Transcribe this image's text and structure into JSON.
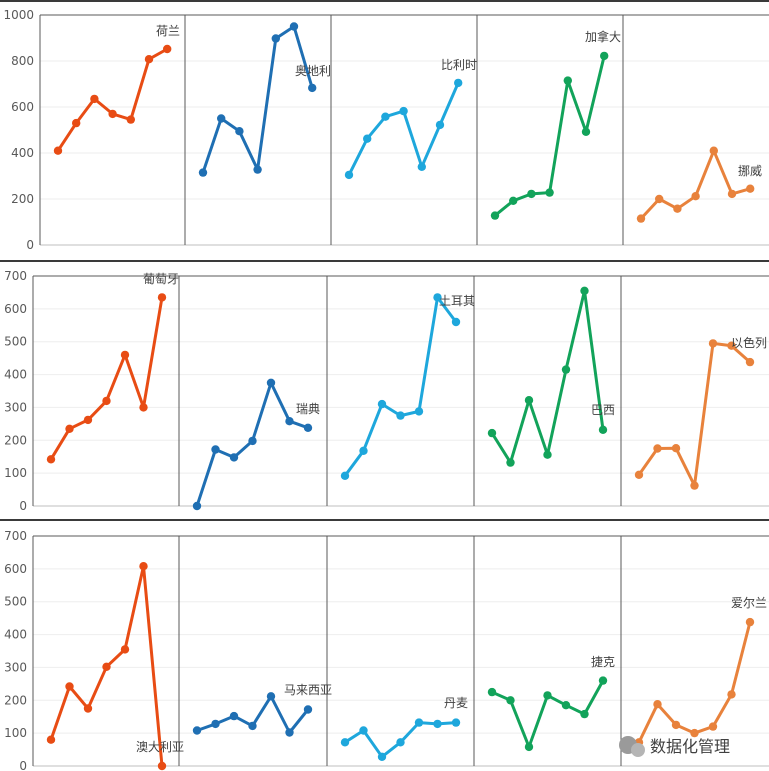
{
  "watermark": "数据化管理",
  "chart_data": [
    {
      "type": "line",
      "ylim": [
        0,
        1000
      ],
      "yticks": [
        0,
        200,
        400,
        600,
        800,
        1000
      ],
      "series": [
        {
          "name": "荷兰",
          "color": "#e84c14",
          "values": [
            410,
            530,
            635,
            570,
            545,
            808,
            852
          ]
        },
        {
          "name": "奥地利",
          "color": "#1f6fb3",
          "values": [
            315,
            550,
            495,
            328,
            898,
            950,
            683
          ]
        },
        {
          "name": "比利时",
          "color": "#1ea7dc",
          "values": [
            305,
            462,
            558,
            582,
            340,
            522,
            705
          ]
        },
        {
          "name": "加拿大",
          "color": "#12a35a",
          "values": [
            128,
            192,
            222,
            228,
            715,
            492,
            822
          ]
        },
        {
          "name": "挪威",
          "color": "#e8823c",
          "values": [
            115,
            200,
            158,
            212,
            410,
            222,
            245
          ]
        }
      ]
    },
    {
      "type": "line",
      "ylim": [
        0,
        700
      ],
      "yticks": [
        0,
        100,
        200,
        300,
        400,
        500,
        600,
        700
      ],
      "series": [
        {
          "name": "葡萄牙",
          "color": "#e84c14",
          "values": [
            142,
            235,
            262,
            320,
            460,
            300,
            635
          ]
        },
        {
          "name": "瑞典",
          "color": "#1f6fb3",
          "values": [
            0,
            172,
            148,
            198,
            375,
            258,
            238
          ]
        },
        {
          "name": "土耳其",
          "color": "#1ea7dc",
          "values": [
            92,
            168,
            310,
            275,
            288,
            635,
            560
          ]
        },
        {
          "name": "巴西",
          "color": "#12a35a",
          "values": [
            222,
            132,
            322,
            156,
            415,
            655,
            232
          ]
        },
        {
          "name": "以色列",
          "color": "#e8823c",
          "values": [
            95,
            175,
            176,
            62,
            495,
            488,
            438
          ]
        }
      ]
    },
    {
      "type": "line",
      "ylim": [
        0,
        700
      ],
      "yticks": [
        0,
        100,
        200,
        300,
        400,
        500,
        600,
        700
      ],
      "series": [
        {
          "name": "澳大利亚",
          "color": "#e84c14",
          "values": [
            80,
            242,
            175,
            302,
            355,
            608,
            0
          ]
        },
        {
          "name": "马来西亚",
          "color": "#1f6fb3",
          "values": [
            108,
            128,
            152,
            122,
            212,
            102,
            172
          ]
        },
        {
          "name": "丹麦",
          "color": "#1ea7dc",
          "values": [
            72,
            108,
            28,
            72,
            132,
            128,
            132
          ]
        },
        {
          "name": "捷克",
          "color": "#12a35a",
          "values": [
            225,
            200,
            58,
            215,
            185,
            158,
            260
          ]
        },
        {
          "name": "爱尔兰",
          "color": "#e8823c",
          "values": [
            72,
            188,
            125,
            100,
            120,
            218,
            438
          ]
        }
      ]
    }
  ]
}
